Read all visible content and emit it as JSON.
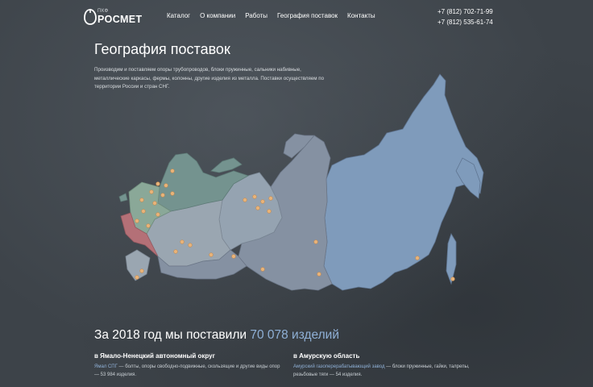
{
  "header": {
    "logo_small": "ПКФ",
    "logo_name": "РОСМЕТ",
    "nav": [
      "Каталог",
      "О компании",
      "Работы",
      "География поставок",
      "Контакты"
    ],
    "phones": [
      "+7 (812) 702-71-99",
      "+7 (812) 535-61-74"
    ]
  },
  "page": {
    "title": "География поставок",
    "description": "Производим и поставляем опоры трубопроводов, блоки пружинные, сальники набивные, металлические каркасы, фермы, колонны, другие изделия из металла. Поставки осуществляем по территории России и стран СНГ."
  },
  "stats": {
    "prefix": "За 2018 год мы поставили",
    "highlight": "70 078 изделий"
  },
  "deliveries": [
    {
      "region": "в Ямало-Ненецкий автономный округ",
      "link": "Ямал СПГ",
      "text": " — болты, опоры свободно-подвижные, скользящие и другие виды опор — 53 984 изделия."
    },
    {
      "region": "в Амурскую область",
      "link": "Амурский газоперерабатывающий завод",
      "text": " — блоки пружинные, гайки, талрепы, резьбовые тяги — 54 изделия."
    }
  ],
  "colors": {
    "background": "#3d4349",
    "accent": "#8fb0d6",
    "dot": "#e9b47a",
    "east_region": "#7f9bbb",
    "siberia_region": "#8591a2",
    "ural_region": "#95a3b1",
    "central_region": "#9aa6b1",
    "northwest_region": "#74938f",
    "central_green": "#8aa898",
    "south_region": "#b47077"
  }
}
